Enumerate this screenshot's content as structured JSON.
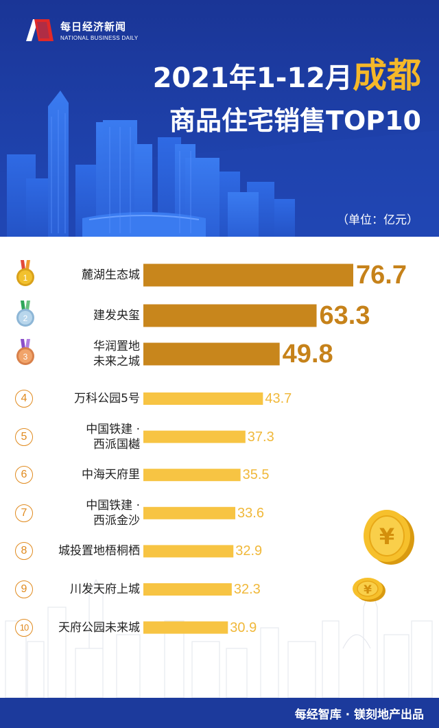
{
  "brand": {
    "name_cn": "每日经济新闻",
    "name_en": "NATIONAL BUSINESS DAILY"
  },
  "title": {
    "line1_prefix": "2021年1-12月",
    "city": "成都",
    "line2": "商品住宅销售TOP10"
  },
  "unit": "（单位：亿元）",
  "footer": "每经智库 · 镁刻地产出品",
  "colors": {
    "header_bg": "#1c3a9c",
    "top3_bar": "#c8861c",
    "rest_bar": "#f7c443",
    "top3_value": "#c6821a",
    "rest_value": "#f0b83a",
    "city_highlight": "#f5b829"
  },
  "chart_data": {
    "type": "bar",
    "orientation": "horizontal",
    "ranks": [
      1,
      2,
      3,
      4,
      5,
      6,
      7,
      8,
      9,
      10
    ],
    "rank_markers": [
      "gold-medal-icon",
      "silver-medal-icon",
      "bronze-medal-icon",
      "4",
      "5",
      "6",
      "7",
      "8",
      "9",
      "10"
    ],
    "categories": [
      "麓湖生态城",
      "建发央玺",
      "华润置地\n未来之城",
      "万科公园5号",
      "中国铁建 ·\n西派国樾",
      "中海天府里",
      "中国铁建 ·\n西派金沙",
      "城投置地梧桐栖",
      "川发天府上城",
      "天府公园未来城"
    ],
    "values": [
      76.7,
      63.3,
      49.8,
      43.7,
      37.3,
      35.5,
      33.6,
      32.9,
      32.3,
      30.9
    ],
    "value_labels": [
      "76.7",
      "63.3",
      "49.8",
      "43.7",
      "37.3",
      "35.5",
      "33.6",
      "32.9",
      "32.3",
      "30.9"
    ],
    "grid": false,
    "legend": "none"
  }
}
